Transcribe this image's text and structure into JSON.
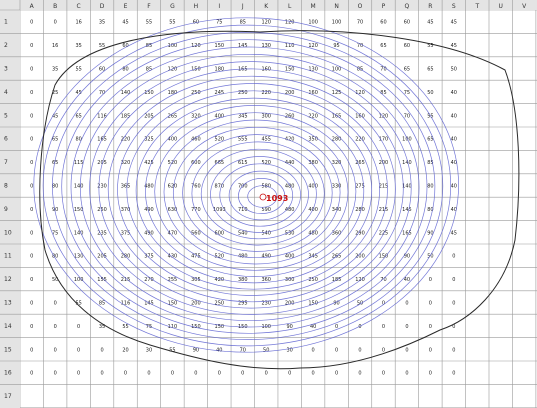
{
  "spreadsheet": {
    "columns": [
      "A",
      "B",
      "C",
      "D",
      "E",
      "F",
      "G",
      "H",
      "I",
      "J",
      "K",
      "L",
      "M",
      "N",
      "O",
      "P",
      "Q",
      "R",
      "S",
      "T",
      "U",
      "V"
    ],
    "rows": [
      "1",
      "2",
      "3",
      "4",
      "5",
      "6",
      "7",
      "8",
      "9",
      "10",
      "11",
      "12",
      "13",
      "14",
      "15",
      "16",
      "17"
    ],
    "peak_label": "1093",
    "colors": {
      "header_bg": "#e4e4e4",
      "grid_line": "#9a9a9a",
      "cell_text": "#222222",
      "contour": "#5a5fd0",
      "outer_boundary": "#2a2a2a",
      "peak": "#cc1111"
    },
    "cells": [
      [
        "0",
        "0",
        "16",
        "35",
        "45",
        "55",
        "55",
        "60",
        "75",
        "85",
        "120",
        "120",
        "100",
        "100",
        "70",
        "60",
        "60",
        "45",
        "45"
      ],
      [
        "0",
        "16",
        "35",
        "55",
        "60",
        "85",
        "100",
        "120",
        "150",
        "145",
        "130",
        "110",
        "120",
        "95",
        "70",
        "65",
        "60",
        "55",
        "45"
      ],
      [
        "0",
        "35",
        "55",
        "60",
        "80",
        "85",
        "120",
        "150",
        "180",
        "165",
        "160",
        "150",
        "130",
        "100",
        "85",
        "70",
        "65",
        "65",
        "50"
      ],
      [
        "0",
        "25",
        "45",
        "70",
        "140",
        "150",
        "180",
        "250",
        "245",
        "250",
        "220",
        "200",
        "160",
        "125",
        "120",
        "85",
        "75",
        "50",
        "40"
      ],
      [
        "0",
        "45",
        "65",
        "116",
        "185",
        "205",
        "265",
        "320",
        "400",
        "345",
        "300",
        "260",
        "220",
        "165",
        "160",
        "120",
        "70",
        "55",
        "40"
      ],
      [
        "0",
        "65",
        "80",
        "165",
        "220",
        "325",
        "400",
        "460",
        "520",
        "555",
        "455",
        "420",
        "350",
        "280",
        "220",
        "170",
        "100",
        "65",
        "40"
      ],
      [
        "0",
        "65",
        "115",
        "205",
        "320",
        "425",
        "520",
        "600",
        "665",
        "615",
        "520",
        "440",
        "380",
        "320",
        "265",
        "200",
        "140",
        "85",
        "40"
      ],
      [
        "0",
        "80",
        "140",
        "230",
        "365",
        "480",
        "620",
        "760",
        "870",
        "700",
        "580",
        "480",
        "400",
        "330",
        "275",
        "215",
        "140",
        "80",
        "40"
      ],
      [
        "0",
        "90",
        "150",
        "250",
        "370",
        "490",
        "630",
        "770",
        "1093",
        "710",
        "590",
        "480",
        "400",
        "340",
        "280",
        "215",
        "145",
        "80",
        "40"
      ],
      [
        "0",
        "75",
        "140",
        "235",
        "375",
        "490",
        "470",
        "560",
        "600",
        "540",
        "540",
        "530",
        "480",
        "360",
        "290",
        "225",
        "165",
        "90",
        "45"
      ],
      [
        "0",
        "80",
        "130",
        "205",
        "280",
        "375",
        "430",
        "475",
        "520",
        "480",
        "490",
        "400",
        "345",
        "265",
        "200",
        "150",
        "90",
        "50",
        "0"
      ],
      [
        "0",
        "50",
        "100",
        "155",
        "215",
        "270",
        "255",
        "305",
        "420",
        "380",
        "360",
        "300",
        "250",
        "185",
        "120",
        "70",
        "40",
        "0",
        "0"
      ],
      [
        "0",
        "0",
        "55",
        "85",
        "116",
        "145",
        "150",
        "200",
        "250",
        "295",
        "230",
        "200",
        "150",
        "90",
        "50",
        "0",
        "0",
        "0",
        "0"
      ],
      [
        "0",
        "0",
        "0",
        "35",
        "55",
        "75",
        "110",
        "150",
        "150",
        "150",
        "100",
        "90",
        "40",
        "0",
        "0",
        "0",
        "0",
        "0",
        "0"
      ],
      [
        "0",
        "0",
        "0",
        "0",
        "20",
        "30",
        "55",
        "90",
        "40",
        "70",
        "50",
        "30",
        "0",
        "0",
        "0",
        "0",
        "0",
        "0",
        "0"
      ],
      [
        "0",
        "0",
        "0",
        "0",
        "0",
        "0",
        "0",
        "0",
        "0",
        "0",
        "0",
        "0",
        "0",
        "0",
        "0",
        "0",
        "0",
        "0",
        "0"
      ]
    ]
  }
}
